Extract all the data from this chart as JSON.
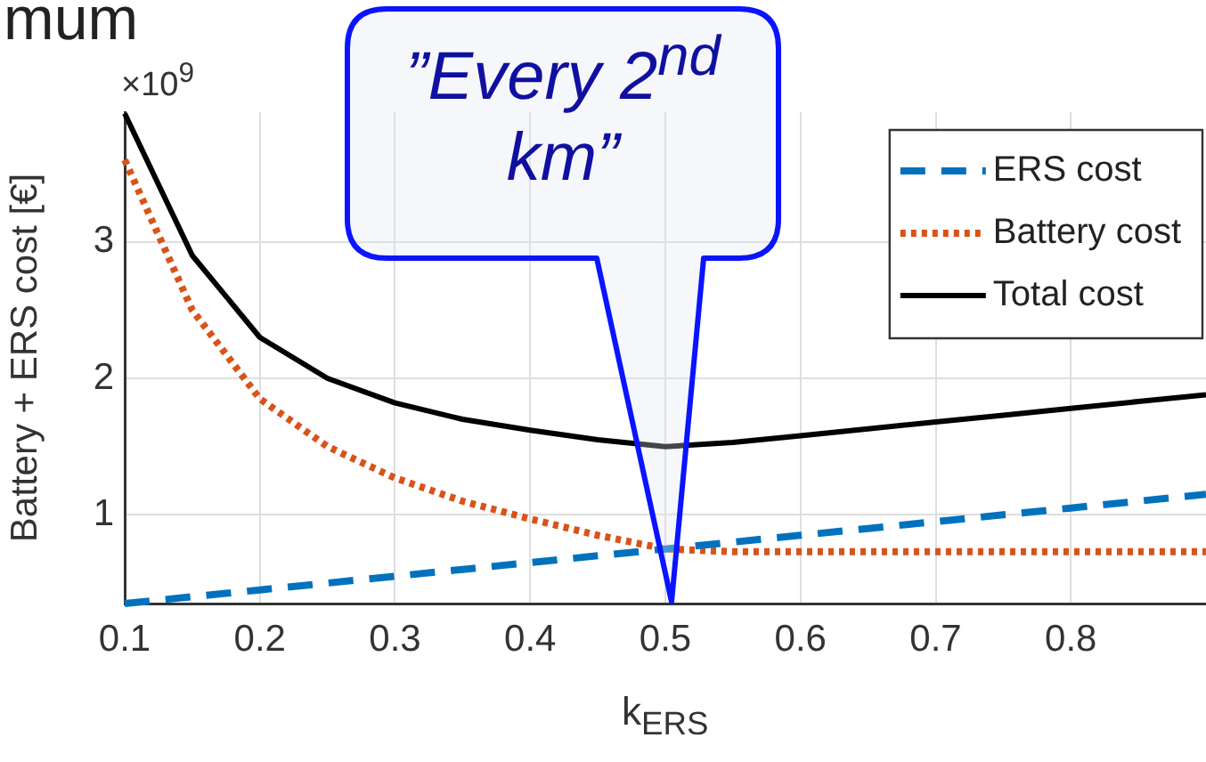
{
  "chart_data": {
    "type": "line",
    "xlabel": "k$_{ERS}$",
    "ylabel": "Battery + ERS cost [€]",
    "annotations": [
      "mum",
      "×10$^{9}$",
      "”Every 2$^{nd}$ km”"
    ],
    "x": [
      0.1,
      0.15,
      0.2,
      0.25,
      0.3,
      0.35,
      0.4,
      0.45,
      0.5,
      0.55,
      0.6,
      0.65,
      0.7,
      0.75,
      0.8,
      0.85,
      0.9
    ],
    "series": [
      {
        "name": "ERS cost",
        "color": "#0072bd",
        "line_style": "dashed",
        "values": [
          0.35,
          0.4,
          0.45,
          0.5,
          0.55,
          0.6,
          0.65,
          0.7,
          0.75,
          0.8,
          0.85,
          0.9,
          0.95,
          1.0,
          1.05,
          1.1,
          1.15
        ]
      },
      {
        "name": "Battery cost",
        "color": "#d95319",
        "line_style": "dotted",
        "values": [
          3.6,
          2.5,
          1.85,
          1.5,
          1.27,
          1.1,
          0.97,
          0.85,
          0.75,
          0.73,
          0.73,
          0.73,
          0.73,
          0.73,
          0.73,
          0.73,
          0.73
        ]
      },
      {
        "name": "Total cost",
        "color": "#000000",
        "line_style": "solid",
        "values": [
          3.94,
          2.9,
          2.3,
          2.0,
          1.82,
          1.7,
          1.62,
          1.55,
          1.5,
          1.53,
          1.58,
          1.63,
          1.68,
          1.73,
          1.78,
          1.83,
          1.88
        ]
      }
    ],
    "xlim": [
      0.1,
      0.9
    ],
    "ylim": [
      0.35,
      3.95
    ],
    "xticks": [
      0.1,
      0.2,
      0.3,
      0.4,
      0.5,
      0.6,
      0.7,
      0.8
    ],
    "yticks": [
      1,
      2,
      3
    ],
    "grid": true,
    "legend": "top right",
    "marker": "none"
  }
}
